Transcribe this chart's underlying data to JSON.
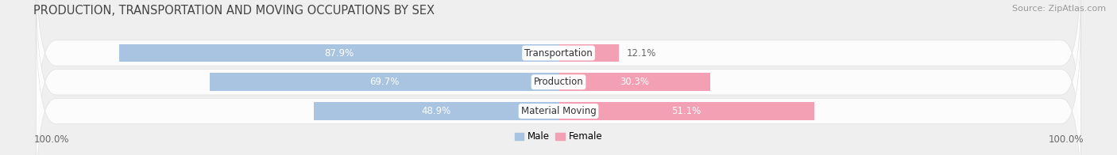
{
  "title": "PRODUCTION, TRANSPORTATION AND MOVING OCCUPATIONS BY SEX",
  "source": "Source: ZipAtlas.com",
  "categories": [
    "Transportation",
    "Production",
    "Material Moving"
  ],
  "male_values": [
    87.9,
    69.7,
    48.9
  ],
  "female_values": [
    12.1,
    30.3,
    51.1
  ],
  "male_color": "#a8c4e0",
  "female_color": "#f4a0b4",
  "label_outside_color": "#666666",
  "bg_color": "#efefef",
  "row_bg_color": "#ffffff",
  "axis_label_left": "100.0%",
  "axis_label_right": "100.0%",
  "legend_male": "Male",
  "legend_female": "Female",
  "title_fontsize": 10.5,
  "source_fontsize": 8,
  "bar_label_fontsize": 8.5,
  "category_fontsize": 8.5
}
